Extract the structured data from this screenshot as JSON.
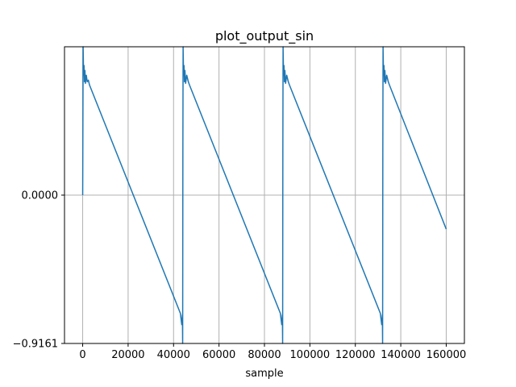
{
  "chart_data": {
    "type": "line",
    "title": "plot_output_sin",
    "xlabel": "sample",
    "ylabel": "-",
    "xlim": [
      -8000,
      168000
    ],
    "ylim": [
      -0.9161,
      0.916
    ],
    "grid": true,
    "line_color": "#1f77b4",
    "x_ticks": [
      0,
      20000,
      40000,
      60000,
      80000,
      100000,
      120000,
      140000,
      160000
    ],
    "x_tick_labels": [
      "0",
      "20000",
      "40000",
      "60000",
      "80000",
      "100000",
      "120000",
      "140000",
      "160000"
    ],
    "y_ticks": [
      0.0,
      -0.9161
    ],
    "y_tick_labels": [
      "0.0000",
      "−0.9161"
    ],
    "series": [
      {
        "x": [
          0,
          200,
          400,
          600,
          800,
          1000,
          1200,
          1600,
          2000,
          2500,
          3000,
          43000,
          43600,
          43900,
          44000,
          44100,
          44200,
          44400,
          44600,
          44800,
          45000,
          45300,
          45800,
          46500,
          47000,
          87000,
          87600,
          87900,
          88000,
          88100,
          88200,
          88400,
          88600,
          88800,
          89000,
          89300,
          89800,
          90500,
          91000,
          131000,
          131600,
          131900,
          132000,
          132100,
          132200,
          132400,
          132600,
          132800,
          133000,
          133300,
          133800,
          134500,
          135000,
          160000
        ],
        "y": [
          0.0,
          0.916,
          0.74,
          0.8,
          0.7,
          0.77,
          0.69,
          0.74,
          0.7,
          0.71,
          0.68,
          -0.73,
          -0.8,
          -0.74,
          -0.9161,
          0.3,
          0.916,
          0.74,
          0.8,
          0.7,
          0.77,
          0.69,
          0.74,
          0.7,
          0.68,
          -0.73,
          -0.8,
          -0.74,
          -0.9161,
          0.3,
          0.916,
          0.74,
          0.8,
          0.7,
          0.77,
          0.69,
          0.74,
          0.7,
          0.68,
          -0.73,
          -0.8,
          -0.74,
          -0.9161,
          0.3,
          0.916,
          0.74,
          0.8,
          0.7,
          0.77,
          0.69,
          0.74,
          0.7,
          0.68,
          -0.21
        ]
      }
    ]
  }
}
